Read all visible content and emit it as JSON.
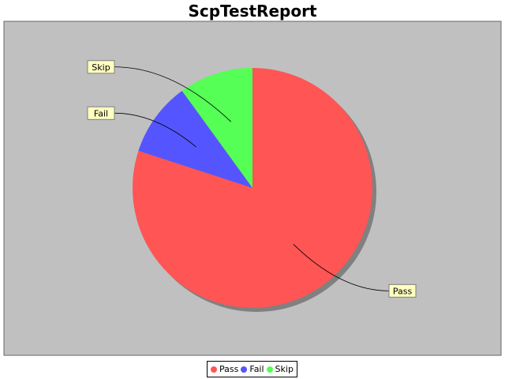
{
  "chart_data": {
    "type": "pie",
    "title": "ScpTestReport",
    "categories": [
      "Pass",
      "Fail",
      "Skip"
    ],
    "values": [
      80,
      10,
      10
    ],
    "colors": [
      "#ff5555",
      "#5555ff",
      "#55ff55"
    ],
    "plot_background": "#c0c0c0",
    "label_background": "#ffffc0",
    "legend_position": "bottom"
  }
}
